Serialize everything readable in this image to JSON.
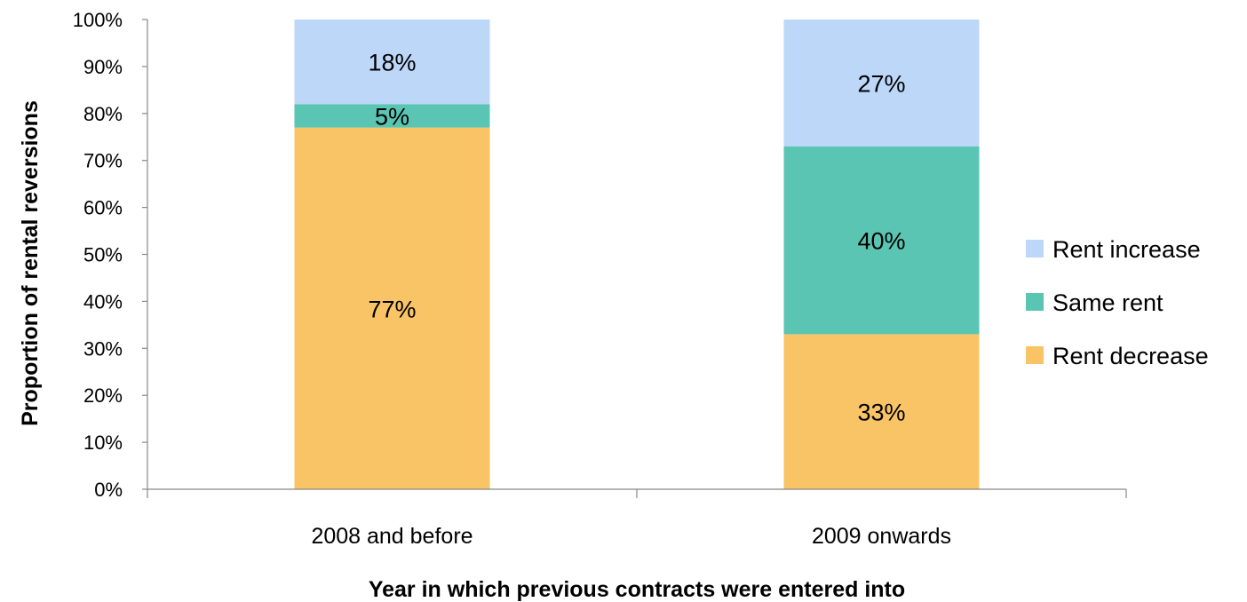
{
  "chart_data": {
    "type": "bar",
    "stacked": true,
    "title": "",
    "xlabel": "Year in which previous contracts were entered into",
    "ylabel": "Proportion of rental reversions",
    "ylim": [
      0,
      100
    ],
    "y_ticks": [
      0,
      10,
      20,
      30,
      40,
      50,
      60,
      70,
      80,
      90,
      100
    ],
    "y_tick_labels": [
      "0%",
      "10%",
      "20%",
      "30%",
      "40%",
      "50%",
      "60%",
      "70%",
      "80%",
      "90%",
      "100%"
    ],
    "grid": false,
    "legend_position": "right",
    "categories": [
      "2008 and before",
      "2009 onwards"
    ],
    "series": [
      {
        "name": "Rent decrease",
        "values": [
          77,
          33
        ],
        "labels": [
          "77%",
          "33%"
        ],
        "color": "#F9C465"
      },
      {
        "name": "Same rent",
        "values": [
          5,
          40
        ],
        "labels": [
          "5%",
          "40%"
        ],
        "color": "#5BC5B3"
      },
      {
        "name": "Rent increase",
        "values": [
          18,
          27
        ],
        "labels": [
          "18%",
          "27%"
        ],
        "color": "#BDD7F8"
      }
    ],
    "legend_order": [
      "Rent increase",
      "Same rent",
      "Rent decrease"
    ]
  }
}
